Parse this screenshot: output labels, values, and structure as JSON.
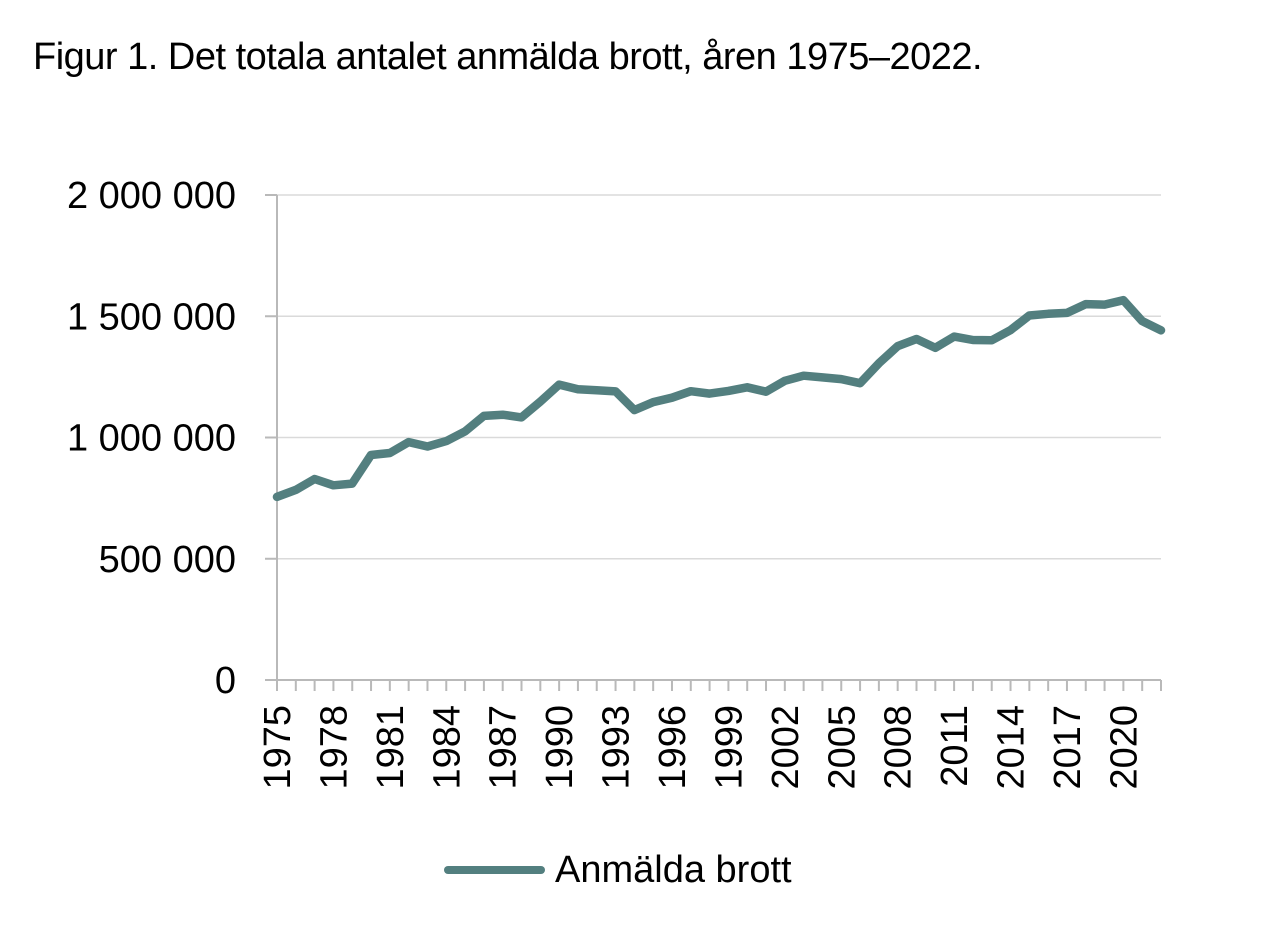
{
  "page": {
    "title": "Figur 1. Det totala antalet anmälda brott, åren 1975–2022."
  },
  "legend": {
    "label": "Anmälda brott"
  },
  "colors": {
    "line": "#537f7f",
    "gridline": "#dadada",
    "axis": "#b9b9b9",
    "text": "#000000",
    "background": "#ffffff"
  },
  "axes": {
    "y": {
      "min": 0,
      "max": 2000000,
      "tick_values": [
        2000000,
        1500000,
        1000000,
        500000,
        0
      ],
      "tick_labels": [
        "2 000 000",
        "1 500 000",
        "1 000 000",
        "500 000",
        "0"
      ]
    },
    "x": {
      "range": [
        1975,
        2022
      ],
      "tick_step_years": 1,
      "label_step_years": 3,
      "labeled_years": [
        "1975",
        "1978",
        "1981",
        "1984",
        "1987",
        "1990",
        "1993",
        "1996",
        "1999",
        "2002",
        "2005",
        "2008",
        "2011",
        "2014",
        "2017",
        "2020"
      ]
    }
  },
  "chart_data": {
    "type": "line",
    "title": "Figur 1. Det totala antalet anmälda brott, åren 1975–2022.",
    "xlabel": "",
    "ylabel": "",
    "ylim": [
      0,
      2000000
    ],
    "grid": true,
    "legend_position": "bottom",
    "x": [
      1975,
      1976,
      1977,
      1978,
      1979,
      1980,
      1981,
      1982,
      1983,
      1984,
      1985,
      1986,
      1987,
      1988,
      1989,
      1990,
      1991,
      1992,
      1993,
      1994,
      1995,
      1996,
      1997,
      1998,
      1999,
      2000,
      2001,
      2002,
      2003,
      2004,
      2005,
      2006,
      2007,
      2008,
      2009,
      2010,
      2011,
      2012,
      2013,
      2014,
      2015,
      2016,
      2017,
      2018,
      2019,
      2020,
      2021,
      2022
    ],
    "series": [
      {
        "name": "Anmälda brott",
        "color": "#537f7f",
        "values": [
          755000,
          784000,
          829000,
          803000,
          810000,
          928000,
          936000,
          981000,
          963000,
          985000,
          1025000,
          1089000,
          1094000,
          1083000,
          1148000,
          1218000,
          1199000,
          1195000,
          1190000,
          1113000,
          1146000,
          1164000,
          1191000,
          1181000,
          1192000,
          1207000,
          1189000,
          1234000,
          1255000,
          1248000,
          1241000,
          1224000,
          1306000,
          1377000,
          1406000,
          1370000,
          1416000,
          1402000,
          1401000,
          1443000,
          1503000,
          1510000,
          1514000,
          1550000,
          1548000,
          1566000,
          1480000,
          1442000
        ]
      }
    ]
  }
}
